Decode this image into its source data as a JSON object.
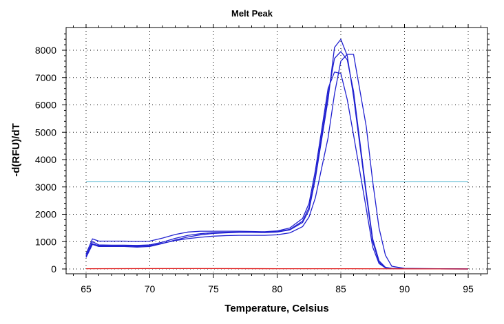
{
  "chart_data": {
    "type": "line",
    "title": "Melt Peak",
    "xlabel": "Temperature, Celsius",
    "ylabel": "-d(RFU)/dT",
    "xlim": [
      65,
      95
    ],
    "ylim": [
      0,
      8500
    ],
    "xticks": [
      65,
      70,
      75,
      80,
      85,
      90,
      95
    ],
    "yticks": [
      0,
      1000,
      2000,
      3000,
      4000,
      5000,
      6000,
      7000,
      8000
    ],
    "grid": true,
    "grid_style": "dotted",
    "threshold": {
      "value": 3200,
      "color": "#8fd0e0"
    },
    "colors": {
      "sample": "#2020d0",
      "negative": "#e02020"
    },
    "series": [
      {
        "color": "#2020d0",
        "x": [
          65,
          65.5,
          66,
          67,
          68,
          69,
          70,
          71,
          72,
          73,
          74,
          75,
          76,
          77,
          78,
          79,
          80,
          81,
          82,
          82.5,
          83,
          84,
          84.5,
          85,
          85.5,
          86,
          87,
          87.5,
          88,
          88.5,
          89,
          90,
          95
        ],
        "y": [
          480,
          1000,
          880,
          870,
          870,
          860,
          880,
          980,
          1120,
          1230,
          1290,
          1330,
          1340,
          1350,
          1350,
          1340,
          1360,
          1450,
          1750,
          2250,
          3400,
          6400,
          7700,
          7950,
          7650,
          6500,
          2800,
          1100,
          300,
          60,
          20,
          10,
          0
        ]
      },
      {
        "color": "#2020d0",
        "x": [
          65,
          65.5,
          66,
          67,
          68,
          69,
          70,
          71,
          72,
          73,
          74,
          75,
          76,
          77,
          78,
          79,
          80,
          81,
          82,
          82.5,
          83,
          84,
          84.5,
          85,
          85.5,
          86,
          87,
          87.5,
          88,
          88.5,
          89,
          90,
          95
        ],
        "y": [
          420,
          900,
          820,
          820,
          820,
          800,
          820,
          930,
          1060,
          1170,
          1250,
          1300,
          1320,
          1340,
          1340,
          1330,
          1350,
          1430,
          1700,
          2150,
          3300,
          6200,
          8100,
          8400,
          7800,
          6300,
          2700,
          1000,
          250,
          50,
          20,
          10,
          0
        ]
      },
      {
        "color": "#2020d0",
        "x": [
          65,
          65.5,
          66,
          67,
          68,
          69,
          70,
          71,
          72,
          73,
          74,
          75,
          76,
          77,
          78,
          79,
          80,
          81,
          82,
          82.5,
          83,
          84,
          84.5,
          85,
          85.5,
          86,
          87,
          87.5,
          88,
          88.5,
          89,
          90,
          95
        ],
        "y": [
          550,
          1100,
          1020,
          1020,
          1020,
          1010,
          1020,
          1130,
          1260,
          1350,
          1380,
          1380,
          1380,
          1380,
          1370,
          1360,
          1390,
          1500,
          1850,
          2400,
          3600,
          6600,
          7200,
          7150,
          6200,
          4900,
          2200,
          800,
          200,
          40,
          20,
          10,
          0
        ]
      },
      {
        "color": "#2020d0",
        "x": [
          65,
          65.5,
          66,
          67,
          68,
          69,
          70,
          71,
          72,
          73,
          74,
          75,
          76,
          77,
          78,
          79,
          80,
          81,
          82,
          82.5,
          83,
          84,
          84.5,
          85,
          85.5,
          86,
          87,
          87.5,
          88,
          88.5,
          89,
          90,
          95
        ],
        "y": [
          450,
          920,
          850,
          850,
          850,
          830,
          850,
          940,
          1040,
          1110,
          1160,
          1200,
          1220,
          1230,
          1230,
          1230,
          1250,
          1320,
          1550,
          1900,
          2600,
          4800,
          6400,
          7600,
          7850,
          7850,
          5200,
          3200,
          1500,
          500,
          100,
          20,
          0
        ]
      },
      {
        "color": "#e02020",
        "x": [
          65,
          70,
          75,
          80,
          85,
          90,
          95
        ],
        "y": [
          10,
          15,
          15,
          10,
          10,
          5,
          0
        ]
      }
    ]
  }
}
